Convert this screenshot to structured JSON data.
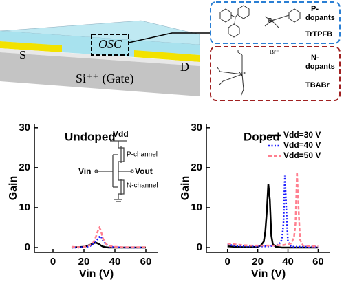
{
  "schematic": {
    "source": "S",
    "channel": "OSC",
    "drain": "D",
    "gate": "Si⁺⁺ (Gate)",
    "p_dopant": {
      "label": [
        "P-",
        "dopants"
      ],
      "name": "TrTPFB"
    },
    "n_dopant": {
      "label": [
        "N-",
        "dopants"
      ],
      "name": "TBABr",
      "counter_ion": "Br⁻"
    }
  },
  "chart_data": [
    {
      "type": "line",
      "title": "Undoped",
      "x_label": "Vin (V)",
      "y_label": "Gain",
      "inset": {
        "vdd": "Vdd",
        "vin": "Vin",
        "vout": "Vout",
        "p_channel": "P-channel",
        "n_channel": "N-channel"
      },
      "x": [
        12,
        16,
        20,
        22,
        24,
        26,
        27,
        28,
        29,
        30,
        31,
        32,
        34,
        36,
        40,
        45,
        50,
        55,
        60
      ],
      "series": [
        {
          "color": "#000000",
          "dash": "solid",
          "values": [
            0,
            0.1,
            0.2,
            0.4,
            0.7,
            1.0,
            1.2,
            1.2,
            1.0,
            0.8,
            0.5,
            0.3,
            0.1,
            0,
            0,
            0,
            0,
            0,
            0
          ]
        },
        {
          "color": "#1a1aff",
          "dash": "dotted",
          "values": [
            0,
            0,
            0.1,
            0.2,
            0.4,
            0.9,
            1.3,
            1.7,
            2.2,
            2.7,
            2.8,
            2.0,
            0.9,
            0.3,
            0.1,
            0,
            0,
            0,
            0
          ]
        },
        {
          "color": "#ff7f8f",
          "dash": "dashed",
          "values": [
            0.2,
            0.1,
            0.2,
            0.3,
            0.6,
            1.3,
            2.0,
            3.0,
            4.2,
            5.0,
            4.2,
            2.5,
            1.0,
            0.4,
            0.2,
            0.1,
            0.1,
            0.1,
            0.1
          ]
        }
      ],
      "xlim": [
        -12,
        68
      ],
      "ylim": [
        -1.2,
        31
      ],
      "xticks": [
        0,
        20,
        40,
        60
      ],
      "yticks": [
        0,
        10,
        20,
        30
      ]
    },
    {
      "type": "line",
      "title": "Doped",
      "x_label": "Vin (V)",
      "y_label": "Gain",
      "legend": "upper right",
      "x": [
        0,
        5,
        10,
        15,
        20,
        22,
        24,
        25,
        26,
        27,
        28,
        29,
        30,
        32,
        34,
        36,
        37,
        38,
        39,
        40,
        42,
        44,
        45,
        46,
        47,
        48,
        50,
        55,
        60
      ],
      "series": [
        {
          "name": "Vdd=30 V",
          "color": "#000000",
          "dash": "solid",
          "values": [
            0.3,
            0.2,
            0.1,
            0.1,
            0.2,
            0.5,
            1.5,
            4,
            9,
            16,
            12,
            3,
            0.8,
            0.2,
            0.1,
            0,
            0,
            0,
            0,
            0,
            0,
            0,
            0,
            0,
            0,
            0,
            0,
            0,
            0
          ]
        },
        {
          "name": "Vdd=40 V",
          "color": "#1a1aff",
          "dash": "dotted",
          "values": [
            0.8,
            0.4,
            0.3,
            0.3,
            0.3,
            0.3,
            0.3,
            0.3,
            0.3,
            0.3,
            0.3,
            0.4,
            0.4,
            0.5,
            0.8,
            2,
            6,
            18,
            9,
            1.5,
            0.3,
            0.2,
            0.2,
            0.2,
            0.2,
            0.2,
            0.2,
            0.2,
            0.2
          ]
        },
        {
          "name": "Vdd=50 V",
          "color": "#ff7f8f",
          "dash": "dashed",
          "values": [
            1.0,
            0.8,
            0.6,
            0.5,
            0.5,
            0.5,
            0.5,
            0.5,
            0.5,
            0.5,
            0.5,
            0.5,
            0.5,
            0.5,
            0.6,
            0.6,
            0.6,
            0.7,
            0.8,
            0.8,
            1.0,
            2.5,
            6,
            19,
            10,
            2,
            0.5,
            0.3,
            0.3
          ]
        }
      ],
      "xlim": [
        -14,
        68
      ],
      "ylim": [
        -1.2,
        31
      ],
      "xticks": [
        0,
        20,
        40,
        60
      ],
      "yticks": [
        0,
        10,
        20,
        30
      ]
    }
  ]
}
